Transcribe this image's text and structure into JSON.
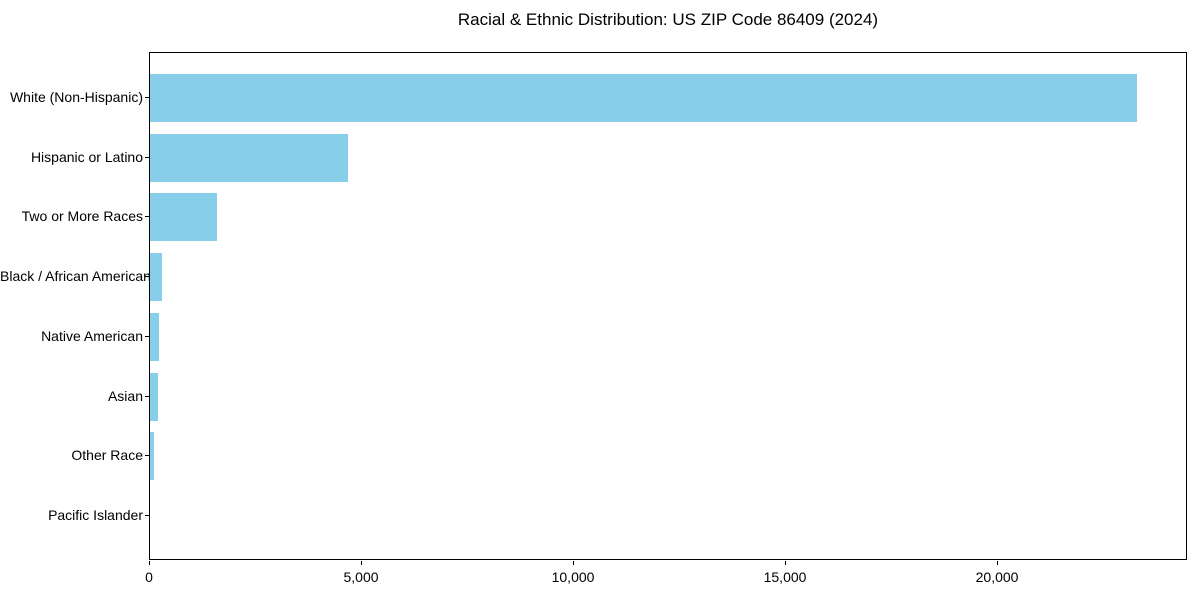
{
  "chart_data": {
    "type": "bar",
    "orientation": "horizontal",
    "title": "Racial & Ethnic Distribution: US ZIP Code 86409 (2024)",
    "categories": [
      "White (Non-Hispanic)",
      "Hispanic or Latino",
      "Two or More Races",
      "Black / African American",
      "Native American",
      "Asian",
      "Other Race",
      "Pacific Islander"
    ],
    "values": [
      23280,
      4670,
      1570,
      280,
      220,
      195,
      100,
      0
    ],
    "bar_color": "#87CEEB",
    "xlabel": "",
    "ylabel": "",
    "xlim": [
      0,
      24480
    ],
    "x_ticks": [
      0,
      5000,
      10000,
      15000,
      20000
    ],
    "x_tick_labels": [
      "0",
      "5,000",
      "10,000",
      "15,000",
      "20,000"
    ],
    "grid": false,
    "legend": null,
    "background_color": "#ffffff",
    "axis_color": "#000000"
  }
}
